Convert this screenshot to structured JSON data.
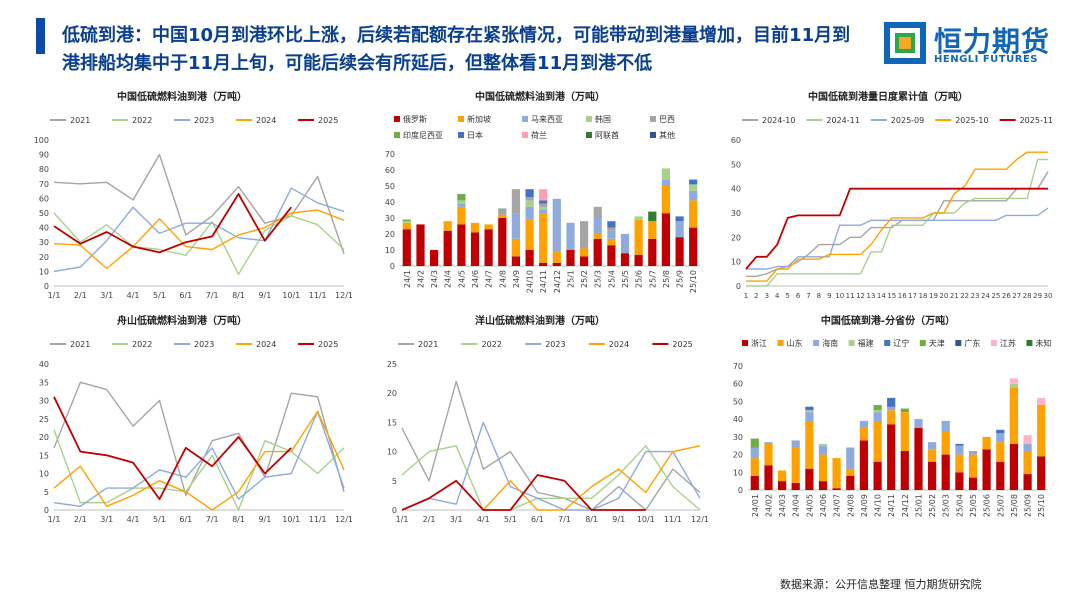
{
  "header": {
    "headline": "低硫到港：中国10月到港环比上涨，后续若配额存在紧张情况，可能带动到港量增加，目前11月到港排船均集中于11月上旬，可能后续会有所延后，但整体看11月到港不低",
    "logo_cn": "恒力期货",
    "logo_en": "HENGLI FUTURES",
    "colors": {
      "accent": "#0b4aa5",
      "brand": "#1266b8"
    }
  },
  "footer": {
    "source": "数据来源：公开信息整理  恒力期货研究院"
  },
  "chart_data": [
    {
      "id": "c1",
      "type": "line",
      "title": "中国低硫燃料油到港（万吨）",
      "x": [
        "1/1",
        "2/1",
        "3/1",
        "4/1",
        "5/1",
        "6/1",
        "7/1",
        "8/1",
        "9/1",
        "10/1",
        "11/1",
        "12/1"
      ],
      "ylim": [
        0,
        100
      ],
      "yticks": [
        0,
        10,
        20,
        30,
        40,
        50,
        60,
        70,
        80,
        90,
        100
      ],
      "grid": false,
      "legend": "top",
      "series": [
        {
          "name": "2021",
          "color": "#a5a5a5",
          "values": [
            71,
            70,
            71,
            59,
            90,
            35,
            48,
            68,
            43,
            48,
            75,
            22
          ]
        },
        {
          "name": "2022",
          "color": "#a9d18e",
          "values": [
            50,
            30,
            42,
            27,
            25,
            21,
            44,
            8,
            38,
            48,
            42,
            25
          ]
        },
        {
          "name": "2023",
          "color": "#8faadc",
          "values": [
            10,
            13,
            31,
            54,
            36,
            43,
            43,
            33,
            31,
            67,
            57,
            51
          ]
        },
        {
          "name": "2024",
          "color": "#ffa200",
          "values": [
            29,
            28,
            12,
            27,
            46,
            27,
            25,
            35,
            40,
            50,
            52,
            45
          ]
        },
        {
          "name": "2025",
          "color": "#c00000",
          "values": [
            41,
            29,
            37,
            27,
            23,
            30,
            34,
            63,
            31,
            54,
            null,
            null
          ]
        }
      ]
    },
    {
      "id": "c2",
      "type": "bar",
      "stacked": true,
      "title": "中国低硫燃料油到港（万吨）",
      "categories": [
        "24/1",
        "24/2",
        "24/3",
        "24/4",
        "24/5",
        "24/6",
        "24/7",
        "24/8",
        "24/9",
        "24/10",
        "24/11",
        "24/12",
        "25/1",
        "25/2",
        "25/3",
        "25/4",
        "25/5",
        "25/6",
        "25/7",
        "25/8",
        "25/9",
        "25/10"
      ],
      "ylim": [
        0,
        70
      ],
      "yticks": [
        0,
        10,
        20,
        30,
        40,
        50,
        60,
        70
      ],
      "grid": false,
      "legend": "top",
      "series": [
        {
          "name": "俄罗斯",
          "color": "#c00000",
          "values": [
            23,
            26,
            10,
            22,
            26,
            21,
            23,
            30,
            6,
            10,
            2,
            2,
            10,
            6,
            17,
            13,
            8,
            7,
            17,
            33,
            18,
            24
          ]
        },
        {
          "name": "新加坡",
          "color": "#ffa200",
          "values": [
            4,
            0,
            0,
            6,
            11,
            6,
            3,
            2,
            11,
            19,
            31,
            7,
            0,
            5,
            3,
            4,
            0,
            22,
            11,
            17,
            0,
            17
          ]
        },
        {
          "name": "马来西亚",
          "color": "#8faadc",
          "values": [
            0,
            0,
            0,
            0,
            2,
            0,
            0,
            0,
            16,
            8,
            2,
            33,
            17,
            0,
            10,
            5,
            12,
            0,
            0,
            4,
            10,
            6
          ]
        },
        {
          "name": "韩国",
          "color": "#a9d18e",
          "values": [
            1,
            0,
            0,
            0,
            2,
            0,
            0,
            0,
            0,
            4,
            2,
            0,
            0,
            0,
            0,
            0,
            0,
            2,
            0,
            7,
            0,
            4
          ]
        },
        {
          "name": "巴西",
          "color": "#a5a5a5",
          "values": [
            0,
            0,
            0,
            0,
            0,
            0,
            0,
            4,
            15,
            2,
            2,
            0,
            0,
            17,
            7,
            2,
            0,
            0,
            0,
            0,
            0,
            0
          ]
        },
        {
          "name": "印度尼西亚",
          "color": "#70ad47",
          "values": [
            1,
            0,
            0,
            0,
            4,
            0,
            0,
            0,
            0,
            0,
            0,
            0,
            0,
            0,
            0,
            0,
            0,
            0,
            0,
            0,
            0,
            0
          ]
        },
        {
          "name": "日本",
          "color": "#4472c4",
          "values": [
            0,
            0,
            0,
            0,
            0,
            0,
            0,
            0,
            0,
            5,
            2,
            0,
            0,
            0,
            0,
            4,
            0,
            0,
            0,
            0,
            3,
            3
          ]
        },
        {
          "name": "荷兰",
          "color": "#ff9fb1",
          "values": [
            0,
            0,
            0,
            0,
            0,
            0,
            0,
            0,
            0,
            0,
            7,
            0,
            0,
            0,
            0,
            0,
            0,
            0,
            0,
            0,
            0,
            0
          ]
        },
        {
          "name": "阿联酋",
          "color": "#2e7d32",
          "values": [
            0,
            0,
            0,
            0,
            0,
            0,
            0,
            0,
            0,
            0,
            0,
            0,
            0,
            0,
            0,
            0,
            0,
            0,
            6,
            0,
            0,
            0
          ]
        },
        {
          "name": "其他",
          "color": "#2f5597",
          "values": [
            0,
            0,
            0,
            0,
            0,
            0,
            0,
            0,
            0,
            0,
            0,
            0,
            0,
            0,
            0,
            0,
            0,
            0,
            0,
            0,
            0,
            0
          ]
        }
      ]
    },
    {
      "id": "c3",
      "type": "line",
      "title": "中国低硫到港量日度累计值（万吨）",
      "x": [
        "1",
        "2",
        "3",
        "4",
        "5",
        "6",
        "7",
        "8",
        "9",
        "10",
        "11",
        "12",
        "13",
        "14",
        "15",
        "16",
        "17",
        "18",
        "19",
        "20",
        "21",
        "22",
        "23",
        "24",
        "25",
        "26",
        "27",
        "28",
        "29",
        "30"
      ],
      "ylim": [
        0,
        60
      ],
      "yticks": [
        0,
        10,
        20,
        30,
        40,
        50,
        60
      ],
      "grid": false,
      "legend": "top",
      "series": [
        {
          "name": "2024-10",
          "color": "#a5a5a5",
          "values": [
            4,
            4,
            5,
            7,
            8,
            10,
            13,
            17,
            17,
            17,
            20,
            20,
            24,
            24,
            24,
            27,
            27,
            27,
            27,
            35,
            35,
            35,
            35,
            35,
            35,
            35,
            40,
            40,
            40,
            47
          ]
        },
        {
          "name": "2024-11",
          "color": "#a9d18e",
          "values": [
            0,
            0,
            0,
            5,
            5,
            5,
            5,
            5,
            5,
            5,
            5,
            5,
            14,
            14,
            25,
            25,
            25,
            25,
            30,
            30,
            30,
            34,
            36,
            36,
            36,
            36,
            36,
            36,
            52,
            52
          ]
        },
        {
          "name": "2025-09",
          "color": "#8faadc",
          "values": [
            7,
            7,
            7,
            8,
            8,
            12,
            12,
            12,
            12,
            25,
            25,
            25,
            27,
            27,
            27,
            27,
            27,
            27,
            27,
            27,
            27,
            27,
            27,
            27,
            27,
            29,
            29,
            29,
            29,
            32
          ]
        },
        {
          "name": "2025-10",
          "color": "#ffa200",
          "values": [
            2,
            2,
            2,
            7,
            7,
            11,
            11,
            11,
            13,
            13,
            13,
            13,
            17,
            23,
            28,
            28,
            28,
            28,
            30,
            30,
            38,
            41,
            48,
            48,
            48,
            48,
            52,
            55,
            55,
            55
          ]
        },
        {
          "name": "2025-11",
          "color": "#c00000",
          "values": [
            7,
            12,
            12,
            17,
            28,
            29,
            29,
            29,
            29,
            29,
            40,
            40,
            40,
            40,
            40,
            40,
            40,
            40,
            40,
            40,
            40,
            40,
            40,
            40,
            40,
            40,
            40,
            40,
            40,
            40
          ]
        }
      ]
    },
    {
      "id": "c4",
      "type": "line",
      "title": "舟山低硫燃料油到港（万吨）",
      "x": [
        "1/1",
        "2/1",
        "3/1",
        "4/1",
        "5/1",
        "6/1",
        "7/1",
        "8/1",
        "9/1",
        "10/1",
        "11/1",
        "12/1"
      ],
      "ylim": [
        0,
        40
      ],
      "yticks": [
        0,
        5,
        10,
        15,
        20,
        25,
        30,
        35,
        40
      ],
      "grid": false,
      "legend": "top",
      "series": [
        {
          "name": "2021",
          "color": "#a5a5a5",
          "values": [
            17,
            35,
            33,
            23,
            30,
            4,
            19,
            21,
            9,
            32,
            31,
            5
          ]
        },
        {
          "name": "2022",
          "color": "#a9d18e",
          "values": [
            22,
            2,
            2,
            6,
            6,
            5,
            15,
            0,
            19,
            16,
            10,
            17
          ]
        },
        {
          "name": "2023",
          "color": "#8faadc",
          "values": [
            2,
            1,
            6,
            6,
            11,
            9,
            17,
            3,
            9,
            10,
            27,
            6
          ]
        },
        {
          "name": "2024",
          "color": "#ffa200",
          "values": [
            6,
            12,
            1,
            4,
            8,
            5,
            0,
            5,
            16,
            16,
            27,
            11
          ]
        },
        {
          "name": "2025",
          "color": "#c00000",
          "values": [
            31,
            16,
            15,
            13,
            3,
            17,
            12,
            20,
            10,
            17,
            null,
            null
          ]
        }
      ]
    },
    {
      "id": "c5",
      "type": "line",
      "title": "洋山低硫燃料油到港（万吨）",
      "x": [
        "1/1",
        "2/1",
        "3/1",
        "4/1",
        "5/1",
        "6/1",
        "7/1",
        "8/1",
        "9/1",
        "10/1",
        "11/1",
        "12/1"
      ],
      "ylim": [
        0,
        25
      ],
      "yticks": [
        0,
        5,
        10,
        15,
        20,
        25
      ],
      "grid": false,
      "legend": "top",
      "series": [
        {
          "name": "2021",
          "color": "#a5a5a5",
          "values": [
            14,
            5,
            22,
            7,
            10,
            3,
            2,
            0,
            4,
            0,
            7,
            3
          ]
        },
        {
          "name": "2022",
          "color": "#a9d18e",
          "values": [
            6,
            10,
            11,
            0,
            0,
            2,
            2,
            2,
            6,
            11,
            4,
            0
          ]
        },
        {
          "name": "2023",
          "color": "#8faadc",
          "values": [
            0,
            2,
            1,
            15,
            4,
            2,
            0,
            0,
            2,
            10,
            10,
            2
          ]
        },
        {
          "name": "2024",
          "color": "#ffa200",
          "values": [
            0,
            2,
            5,
            0,
            5,
            0,
            0,
            4,
            7,
            3,
            10,
            11
          ]
        },
        {
          "name": "2025",
          "color": "#c00000",
          "values": [
            0,
            2,
            5,
            0,
            0,
            6,
            5,
            0,
            0,
            0,
            null,
            null
          ]
        }
      ]
    },
    {
      "id": "c6",
      "type": "bar",
      "stacked": true,
      "title": "中国低硫到港-分省份（万吨）",
      "categories": [
        "24/01",
        "24/02",
        "24/03",
        "24/04",
        "24/05",
        "24/06",
        "24/07",
        "24/08",
        "24/09",
        "24/10",
        "24/11",
        "24/12",
        "25/01",
        "25/02",
        "25/03",
        "25/04",
        "25/05",
        "25/06",
        "25/07",
        "25/08",
        "25/09",
        "25/10"
      ],
      "ylim": [
        0,
        70
      ],
      "yticks": [
        0,
        10,
        20,
        30,
        40,
        50,
        60,
        70
      ],
      "grid": false,
      "legend": "top",
      "series": [
        {
          "name": "浙江",
          "color": "#c00000",
          "values": [
            8,
            14,
            5,
            4,
            12,
            5,
            1,
            8,
            28,
            16,
            37,
            22,
            35,
            16,
            20,
            10,
            7,
            23,
            16,
            26,
            9,
            19
          ]
        },
        {
          "name": "山东",
          "color": "#ffa200",
          "values": [
            10,
            12,
            6,
            20,
            27,
            15,
            17,
            4,
            7,
            23,
            8,
            22,
            0,
            7,
            13,
            10,
            13,
            7,
            11,
            32,
            13,
            29
          ]
        },
        {
          "name": "海南",
          "color": "#8faadc",
          "values": [
            6,
            1,
            0,
            4,
            5,
            5,
            0,
            12,
            4,
            5,
            2,
            0,
            5,
            4,
            6,
            5,
            2,
            0,
            5,
            0,
            4,
            0
          ]
        },
        {
          "name": "福建",
          "color": "#a9d18e",
          "values": [
            0,
            0,
            0,
            0,
            1,
            1,
            0,
            0,
            0,
            1,
            0,
            0,
            0,
            0,
            0,
            0,
            0,
            0,
            0,
            2,
            0,
            0
          ]
        },
        {
          "name": "辽宁",
          "color": "#4472c4",
          "values": [
            0,
            0,
            0,
            0,
            2,
            0,
            0,
            0,
            0,
            0,
            5,
            0,
            0,
            0,
            0,
            1,
            0,
            0,
            2,
            0,
            0,
            0
          ]
        },
        {
          "name": "天津",
          "color": "#70ad47",
          "values": [
            5,
            0,
            0,
            0,
            0,
            0,
            0,
            0,
            0,
            3,
            0,
            2,
            0,
            0,
            0,
            0,
            0,
            0,
            0,
            0,
            0,
            0
          ]
        },
        {
          "name": "广东",
          "color": "#2f5597",
          "values": [
            0,
            0,
            0,
            0,
            0,
            0,
            0,
            0,
            0,
            0,
            0,
            0,
            0,
            0,
            0,
            0,
            0,
            0,
            0,
            0,
            0,
            0
          ]
        },
        {
          "name": "江苏",
          "color": "#ffb3c6",
          "values": [
            0,
            0,
            0,
            0,
            0,
            0,
            0,
            0,
            0,
            0,
            0,
            0,
            0,
            0,
            0,
            0,
            0,
            0,
            0,
            3,
            5,
            4
          ]
        },
        {
          "name": "未知",
          "color": "#2e7d32",
          "values": [
            0,
            0,
            0,
            0,
            0,
            0,
            0,
            0,
            0,
            0,
            0,
            0,
            0,
            0,
            0,
            0,
            0,
            0,
            0,
            0,
            0,
            0
          ]
        }
      ]
    }
  ]
}
